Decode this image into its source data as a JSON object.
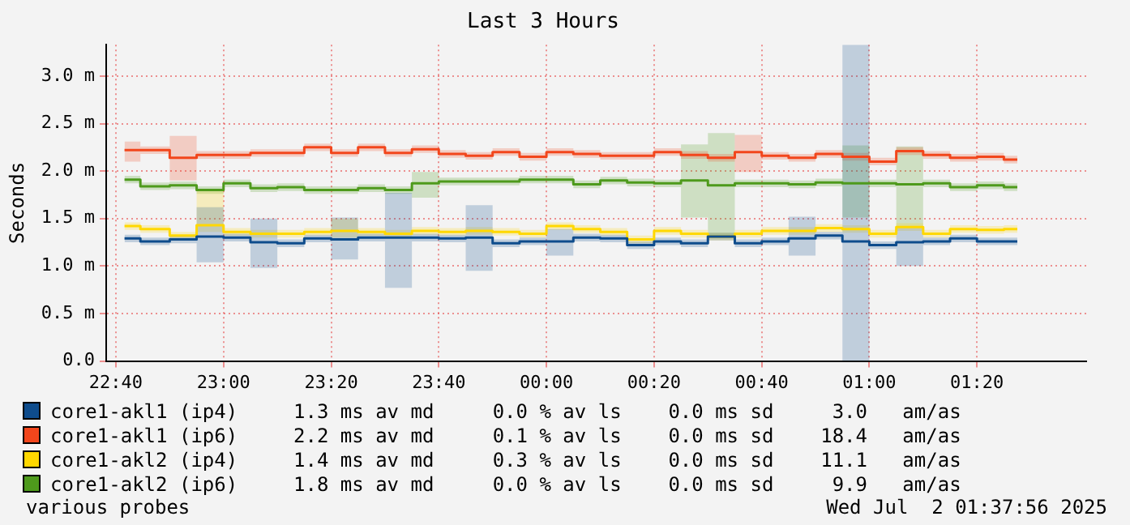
{
  "chart_data": {
    "type": "step",
    "title": "Last 3 Hours",
    "ylabel": "Seconds",
    "x": [
      "2025-07-01T22:41:36",
      "2025-07-01T22:47:30",
      "2025-07-01T22:52:30",
      "2025-07-01T22:57:30",
      "2025-07-01T23:02:30",
      "2025-07-01T23:07:30",
      "2025-07-01T23:12:30",
      "2025-07-01T23:17:30",
      "2025-07-01T23:22:30",
      "2025-07-01T23:27:30",
      "2025-07-01T23:32:30",
      "2025-07-01T23:37:30",
      "2025-07-01T23:42:30",
      "2025-07-01T23:47:30",
      "2025-07-01T23:52:30",
      "2025-07-01T23:57:30",
      "2025-07-02T00:02:30",
      "2025-07-02T00:07:30",
      "2025-07-02T00:12:30",
      "2025-07-02T00:17:30",
      "2025-07-02T00:22:30",
      "2025-07-02T00:27:30",
      "2025-07-02T00:32:30",
      "2025-07-02T00:37:30",
      "2025-07-02T00:42:30",
      "2025-07-02T00:47:30",
      "2025-07-02T00:52:30",
      "2025-07-02T00:57:30",
      "2025-07-02T01:02:30",
      "2025-07-02T01:07:30",
      "2025-07-02T01:12:30",
      "2025-07-02T01:17:30",
      "2025-07-02T01:22:30",
      "2025-07-02T01:27:30"
    ],
    "series": [
      {
        "name": "core1-akl1 (ip4)",
        "color": "#0e4c8c",
        "values": [
          1.29,
          1.26,
          1.28,
          1.31,
          1.3,
          1.25,
          1.24,
          1.29,
          1.28,
          1.3,
          1.3,
          1.3,
          1.29,
          1.3,
          1.24,
          1.26,
          1.26,
          1.3,
          1.29,
          1.22,
          1.26,
          1.24,
          1.31,
          1.24,
          1.26,
          1.29,
          1.32,
          1.26,
          1.22,
          1.25,
          1.26,
          1.29,
          1.26,
          1.26
        ],
        "lower": [
          1.25,
          1.22,
          1.24,
          1.04,
          1.26,
          0.98,
          1.2,
          1.25,
          1.07,
          1.26,
          0.77,
          1.26,
          1.25,
          0.95,
          1.2,
          1.22,
          1.11,
          1.26,
          1.25,
          1.18,
          1.22,
          1.2,
          1.27,
          1.2,
          1.22,
          1.11,
          1.28,
          0,
          1.18,
          1.0,
          1.22,
          1.25,
          1.22,
          1.22
        ],
        "upper": [
          1.33,
          1.3,
          1.32,
          1.62,
          1.34,
          1.5,
          1.28,
          1.33,
          1.51,
          1.34,
          1.77,
          1.34,
          1.33,
          1.64,
          1.28,
          1.3,
          1.39,
          1.34,
          1.33,
          1.26,
          1.3,
          1.28,
          1.35,
          1.28,
          1.3,
          1.52,
          1.36,
          3.33,
          1.26,
          1.4,
          1.3,
          1.33,
          1.3,
          1.3
        ]
      },
      {
        "name": "core1-akl1 (ip6)",
        "color": "#f2461c",
        "values": [
          2.22,
          2.22,
          2.14,
          2.17,
          2.17,
          2.19,
          2.19,
          2.25,
          2.19,
          2.25,
          2.19,
          2.23,
          2.18,
          2.16,
          2.2,
          2.15,
          2.2,
          2.18,
          2.16,
          2.16,
          2.2,
          2.17,
          2.14,
          2.2,
          2.16,
          2.14,
          2.18,
          2.15,
          2.1,
          2.21,
          2.17,
          2.14,
          2.15,
          2.12
        ],
        "lower": [
          2.1,
          2.18,
          1.9,
          2.13,
          2.13,
          2.15,
          2.15,
          2.21,
          2.15,
          2.21,
          2.15,
          2.19,
          2.14,
          2.12,
          2.16,
          2.11,
          2.16,
          2.14,
          2.12,
          2.12,
          2.16,
          2.13,
          2.1,
          1.99,
          2.12,
          2.1,
          2.14,
          2.11,
          2.06,
          2.17,
          2.13,
          2.1,
          2.11,
          2.08
        ],
        "upper": [
          2.31,
          2.26,
          2.37,
          2.21,
          2.21,
          2.23,
          2.23,
          2.29,
          2.23,
          2.29,
          2.23,
          2.27,
          2.22,
          2.2,
          2.24,
          2.19,
          2.24,
          2.22,
          2.2,
          2.2,
          2.24,
          2.21,
          2.18,
          2.38,
          2.2,
          2.18,
          2.22,
          2.19,
          2.14,
          2.25,
          2.21,
          2.18,
          2.19,
          2.16
        ]
      },
      {
        "name": "core1-akl2 (ip4)",
        "color": "#ffd800",
        "values": [
          1.42,
          1.39,
          1.32,
          1.43,
          1.36,
          1.34,
          1.34,
          1.36,
          1.37,
          1.36,
          1.34,
          1.37,
          1.36,
          1.37,
          1.36,
          1.34,
          1.42,
          1.39,
          1.36,
          1.28,
          1.37,
          1.34,
          1.31,
          1.34,
          1.37,
          1.37,
          1.4,
          1.39,
          1.34,
          1.41,
          1.34,
          1.39,
          1.38,
          1.39
        ],
        "lower": [
          1.38,
          1.35,
          1.28,
          1.36,
          1.32,
          1.3,
          1.3,
          1.32,
          1.3,
          1.32,
          1.3,
          1.33,
          1.32,
          1.33,
          1.32,
          1.3,
          1.38,
          1.35,
          1.32,
          1.24,
          1.33,
          1.3,
          1.27,
          1.3,
          1.33,
          1.33,
          1.36,
          1.35,
          1.3,
          1.37,
          1.3,
          1.35,
          1.34,
          1.35
        ],
        "upper": [
          1.46,
          1.43,
          1.36,
          1.8,
          1.4,
          1.38,
          1.38,
          1.4,
          1.5,
          1.4,
          1.38,
          1.41,
          1.4,
          1.41,
          1.4,
          1.38,
          1.46,
          1.43,
          1.4,
          1.32,
          1.41,
          1.38,
          1.35,
          1.38,
          1.41,
          1.41,
          1.44,
          1.43,
          1.38,
          1.45,
          1.38,
          1.43,
          1.42,
          1.43
        ]
      },
      {
        "name": "core1-akl2 (ip6)",
        "color": "#4e9a1c",
        "values": [
          1.91,
          1.84,
          1.85,
          1.8,
          1.87,
          1.82,
          1.83,
          1.8,
          1.8,
          1.82,
          1.8,
          1.87,
          1.89,
          1.89,
          1.89,
          1.91,
          1.91,
          1.86,
          1.9,
          1.88,
          1.87,
          1.9,
          1.85,
          1.87,
          1.87,
          1.86,
          1.88,
          1.87,
          1.87,
          1.86,
          1.87,
          1.83,
          1.85,
          1.83
        ],
        "lower": [
          1.87,
          1.8,
          1.81,
          1.76,
          1.83,
          1.78,
          1.79,
          1.76,
          1.76,
          1.78,
          1.76,
          1.72,
          1.85,
          1.85,
          1.85,
          1.87,
          1.87,
          1.82,
          1.86,
          1.84,
          1.83,
          1.51,
          1.32,
          1.83,
          1.83,
          1.82,
          1.84,
          1.51,
          1.83,
          1.4,
          1.83,
          1.79,
          1.81,
          1.79
        ],
        "upper": [
          1.95,
          1.88,
          1.89,
          1.84,
          1.91,
          1.86,
          1.87,
          1.84,
          1.84,
          1.86,
          1.84,
          1.99,
          1.93,
          1.93,
          1.93,
          1.95,
          1.95,
          1.9,
          1.94,
          1.92,
          1.91,
          2.28,
          2.4,
          1.91,
          1.91,
          1.9,
          1.92,
          2.27,
          1.91,
          2.26,
          1.91,
          1.87,
          1.89,
          1.87
        ]
      }
    ],
    "xlim": [
      "2025-07-01T22:38:12",
      "2025-07-02T01:40:18"
    ],
    "xticks": [
      {
        "value": "2025-07-01T22:40",
        "label": "22:40"
      },
      {
        "value": "2025-07-01T23:00",
        "label": "23:00"
      },
      {
        "value": "2025-07-01T23:20",
        "label": "23:20"
      },
      {
        "value": "2025-07-01T23:40",
        "label": "23:40"
      },
      {
        "value": "2025-07-02T00:00",
        "label": "00:00"
      },
      {
        "value": "2025-07-02T00:20",
        "label": "00:20"
      },
      {
        "value": "2025-07-02T00:40",
        "label": "00:40"
      },
      {
        "value": "2025-07-02T01:00",
        "label": "01:00"
      },
      {
        "value": "2025-07-02T01:20",
        "label": "01:20"
      }
    ],
    "ylim": [
      0,
      3.33
    ],
    "yticks": [
      {
        "value": 0,
        "label": "0.0"
      },
      {
        "value": 0.5,
        "label": "0.5 m"
      },
      {
        "value": 1.0,
        "label": "1.0 m"
      },
      {
        "value": 1.5,
        "label": "1.5 m"
      },
      {
        "value": 2.0,
        "label": "2.0 m"
      },
      {
        "value": 2.5,
        "label": "2.5 m"
      },
      {
        "value": 3.0,
        "label": "3.0 m"
      }
    ],
    "grid": true,
    "legend": "bottom",
    "marker": "none",
    "annotations": [
      "1.3 ms av md     0.0 % av ls    0.0 ms sd     3.0   am/as",
      "2.2 ms av md     0.1 % av ls    0.0 ms sd    18.4   am/as",
      "1.4 ms av md     0.3 % av ls    0.0 ms sd    11.1   am/as",
      "1.8 ms av md     0.0 % av ls    0.0 ms sd     9.9   am/as",
      "various probes",
      "Wed Jul  2 01:37:56 2025"
    ]
  }
}
